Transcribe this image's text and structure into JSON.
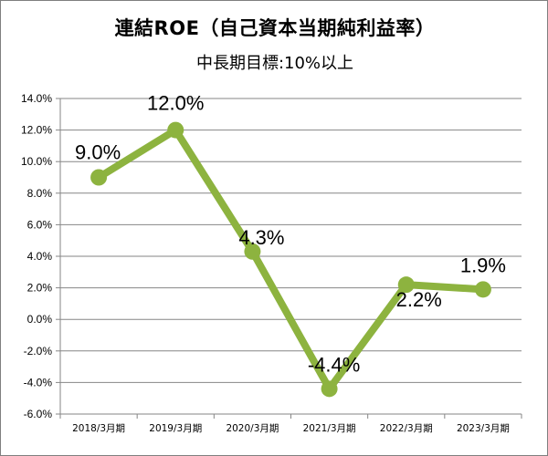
{
  "chart_data": {
    "type": "line",
    "title": "連結ROE（自己資本当期純利益率）",
    "subtitle": "中長期目標:10%以上",
    "xlabel": "",
    "ylabel": "",
    "categories": [
      "2018/3月期",
      "2019/3月期",
      "2020/3月期",
      "2021/3月期",
      "2022/3月期",
      "2023/3月期"
    ],
    "series": [
      {
        "values": [
          9.0,
          12.0,
          4.3,
          -4.4,
          2.2,
          1.9
        ],
        "labels": [
          "9.0%",
          "12.0%",
          "4.3%",
          "-4.4%",
          "2.2%",
          "1.9%"
        ],
        "color": "#8db33f"
      }
    ],
    "ylim": [
      -6.0,
      14.0
    ],
    "ytick_step": 2.0,
    "ytick_labels": [
      "14.0%",
      "12.0%",
      "10.0%",
      "8.0%",
      "6.0%",
      "4.0%",
      "2.0%",
      "0.0%",
      "-2.0%",
      "-4.0%",
      "-6.0%"
    ],
    "grid": true,
    "legend": "none"
  }
}
